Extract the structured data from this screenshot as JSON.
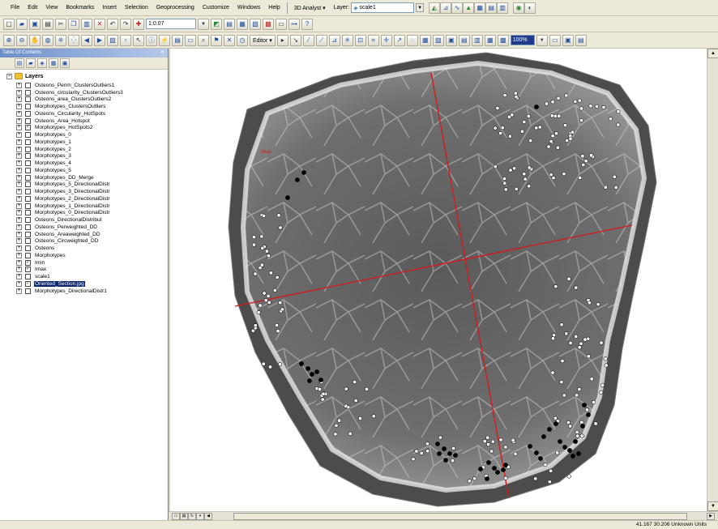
{
  "menu": {
    "items": [
      "File",
      "Edit",
      "View",
      "Bookmarks",
      "Insert",
      "Selection",
      "Geoprocessing",
      "Customize",
      "Windows",
      "Help"
    ],
    "analyst_label": "3D Analyst ▾",
    "layer_label": "Layer:",
    "layer_value": "scale1"
  },
  "toolbar": {
    "scale_value": "1:0.07",
    "editor_label": "Editor ▾",
    "zoom_value": "100%"
  },
  "toc": {
    "title": "Table Of Contents",
    "root_label": "Layers",
    "layers": [
      {
        "name": "Osteons_Perim_ClustersOutliers1",
        "checked": false
      },
      {
        "name": "Osteons_circularity_ClustersOutliers3",
        "checked": false
      },
      {
        "name": "Osteons_area_ClustersOutliers2",
        "checked": false
      },
      {
        "name": "Morphotypes_ClustersOutliers",
        "checked": false
      },
      {
        "name": "Osteons_Circularity_HotSpots",
        "checked": false
      },
      {
        "name": "Osteons_Area_Hotspot",
        "checked": false
      },
      {
        "name": "Morphotypes_HotSpots2",
        "checked": true
      },
      {
        "name": "Morphotypes_0",
        "checked": false
      },
      {
        "name": "Morphotypes_1",
        "checked": false
      },
      {
        "name": "Morphotypes_2",
        "checked": false
      },
      {
        "name": "Morphotypes_3",
        "checked": false
      },
      {
        "name": "Morphotypes_4",
        "checked": false
      },
      {
        "name": "Morphotypes_5",
        "checked": false
      },
      {
        "name": "Morphotypes_DD_Merge",
        "checked": false
      },
      {
        "name": "Morphotypes_5_DirectionalDistr",
        "checked": false
      },
      {
        "name": "Morphotypes_3_DirectionalDistr",
        "checked": false
      },
      {
        "name": "Morphotypes_2_DirectionalDistr",
        "checked": false
      },
      {
        "name": "Morphotypes_1_DirectionalDistr",
        "checked": false
      },
      {
        "name": "Morphotypes_0_DirectionalDistr",
        "checked": false
      },
      {
        "name": "Osteons_DirectionalDistribut",
        "checked": false
      },
      {
        "name": "Osteons_Perweighted_DD",
        "checked": false
      },
      {
        "name": "Osteons_Areaweighted_DD",
        "checked": false
      },
      {
        "name": "Osteons_Circweighted_DD",
        "checked": false
      },
      {
        "name": "Osteons",
        "checked": false
      },
      {
        "name": "Morphotypes",
        "checked": false
      },
      {
        "name": "Imin",
        "checked": true
      },
      {
        "name": "Imax",
        "checked": true
      },
      {
        "name": "scale1",
        "checked": false
      },
      {
        "name": "Oriented_Section.jpg",
        "checked": true,
        "selected": true
      },
      {
        "name": "Morphotypes_DirectionalDistr1",
        "checked": false
      }
    ]
  },
  "map": {
    "axis_color": "#d01c1c",
    "label": "Imax"
  },
  "status": {
    "coordinates": "41.167  30.206 Unknown Units"
  }
}
